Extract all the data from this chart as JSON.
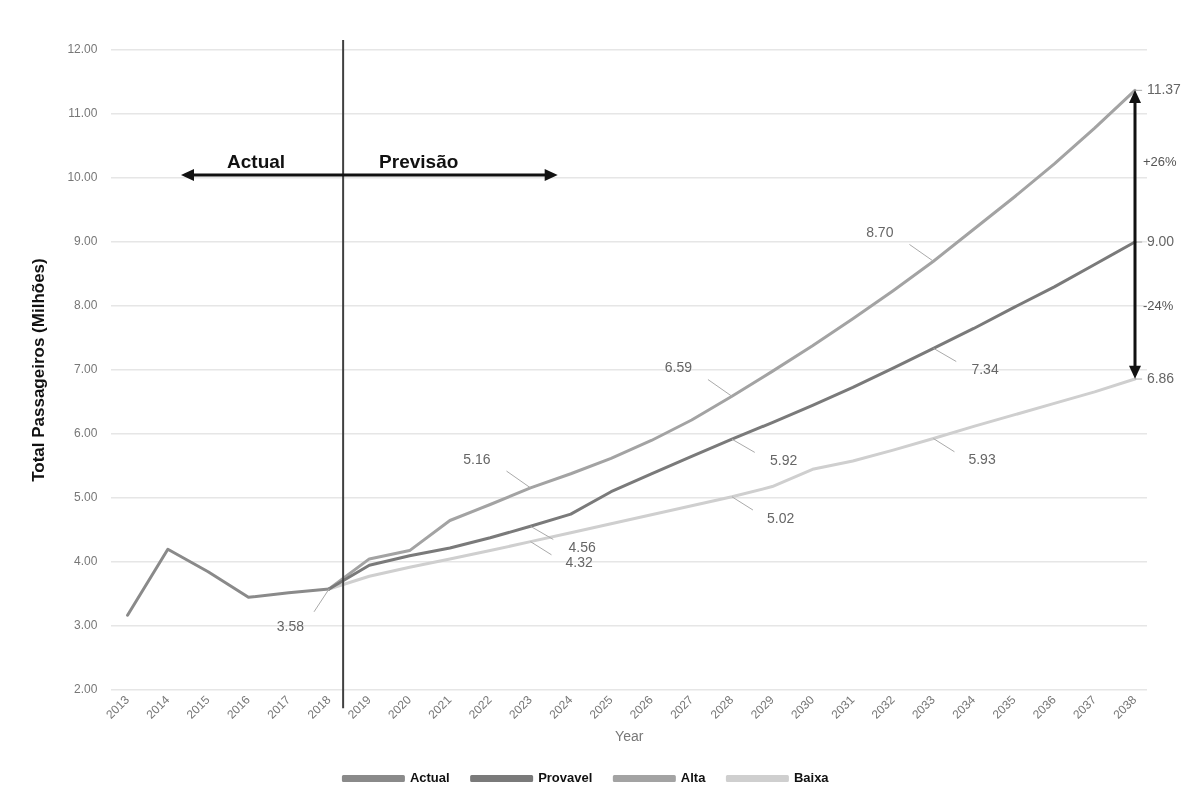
{
  "chart_data": {
    "type": "line",
    "xlabel": "Year",
    "ylabel": "Total Passageiros (Milhões)",
    "xlim": [
      2012.6,
      2038.3
    ],
    "xticks": [
      2013,
      2014,
      2015,
      2016,
      2017,
      2018,
      2019,
      2020,
      2021,
      2022,
      2023,
      2024,
      2025,
      2026,
      2027,
      2028,
      2029,
      2030,
      2031,
      2032,
      2033,
      2034,
      2035,
      2036,
      2037,
      2038
    ],
    "ylim": [
      2,
      12
    ],
    "yticks": [
      {
        "value": 2,
        "label": "2.00"
      },
      {
        "value": 3,
        "label": "3.00"
      },
      {
        "value": 4,
        "label": "4.00"
      },
      {
        "value": 5,
        "label": "5.00"
      },
      {
        "value": 6,
        "label": "6.00"
      },
      {
        "value": 7,
        "label": "7.00"
      },
      {
        "value": 8,
        "label": "8.00"
      },
      {
        "value": 9,
        "label": "9.00"
      },
      {
        "value": 10,
        "label": "10.00"
      },
      {
        "value": 11,
        "label": "11.00"
      },
      {
        "value": 12,
        "label": "12.00"
      }
    ],
    "grid": "y",
    "legend": "bottom",
    "series": [
      {
        "name": "Actual",
        "color": "#8a8a8a",
        "x": [
          2013,
          2014,
          2015,
          2016,
          2017,
          2018
        ],
        "values": [
          3.17,
          4.2,
          3.85,
          3.45,
          3.52,
          3.58
        ],
        "value_labels": [
          null,
          null,
          null,
          null,
          null,
          "3.58"
        ]
      },
      {
        "name": "Provavel",
        "color": "#7a7a7a",
        "x": [
          2018,
          2019,
          2020,
          2021,
          2022,
          2023,
          2024,
          2025,
          2026,
          2027,
          2028,
          2029,
          2030,
          2031,
          2032,
          2033,
          2034,
          2035,
          2036,
          2037,
          2038
        ],
        "values": [
          3.58,
          3.95,
          4.1,
          4.22,
          4.38,
          4.56,
          4.75,
          5.1,
          5.38,
          5.65,
          5.92,
          6.18,
          6.45,
          6.73,
          7.03,
          7.34,
          7.65,
          7.98,
          8.3,
          8.65,
          9.0
        ],
        "value_labels": [
          null,
          null,
          null,
          null,
          null,
          "4.56",
          null,
          null,
          null,
          null,
          "5.92",
          null,
          null,
          null,
          null,
          "7.34",
          null,
          null,
          null,
          null,
          "9.00"
        ]
      },
      {
        "name": "Alta",
        "color": "#a3a3a3",
        "x": [
          2018,
          2019,
          2020,
          2021,
          2022,
          2023,
          2024,
          2025,
          2026,
          2027,
          2028,
          2029,
          2030,
          2031,
          2032,
          2033,
          2034,
          2035,
          2036,
          2037,
          2038
        ],
        "values": [
          3.58,
          4.05,
          4.18,
          4.65,
          4.9,
          5.16,
          5.38,
          5.62,
          5.9,
          6.22,
          6.59,
          6.98,
          7.38,
          7.8,
          8.24,
          8.7,
          9.2,
          9.7,
          10.22,
          10.78,
          11.37
        ],
        "value_labels": [
          null,
          null,
          null,
          null,
          null,
          "5.16",
          null,
          null,
          null,
          null,
          "6.59",
          null,
          null,
          null,
          null,
          "8.70",
          null,
          null,
          null,
          null,
          "11.37"
        ]
      },
      {
        "name": "Baixa",
        "color": "#cfcfcf",
        "x": [
          2018,
          2019,
          2020,
          2021,
          2022,
          2023,
          2024,
          2025,
          2026,
          2027,
          2028,
          2029,
          2030,
          2031,
          2032,
          2033,
          2034,
          2035,
          2036,
          2037,
          2038
        ],
        "values": [
          3.58,
          3.78,
          3.92,
          4.05,
          4.18,
          4.32,
          4.46,
          4.6,
          4.74,
          4.88,
          5.02,
          5.18,
          5.45,
          5.58,
          5.75,
          5.93,
          6.12,
          6.3,
          6.48,
          6.66,
          6.86
        ],
        "value_labels": [
          null,
          null,
          null,
          null,
          null,
          "4.32",
          null,
          null,
          null,
          null,
          "5.02",
          null,
          null,
          null,
          null,
          "5.93",
          null,
          null,
          null,
          null,
          "6.86"
        ]
      }
    ],
    "ref_lines": [
      {
        "axis": "x",
        "value": 2018.35,
        "color": "#404040"
      }
    ],
    "annotations": [
      "Actual",
      "Previsão",
      "+26%",
      "-24%"
    ]
  }
}
